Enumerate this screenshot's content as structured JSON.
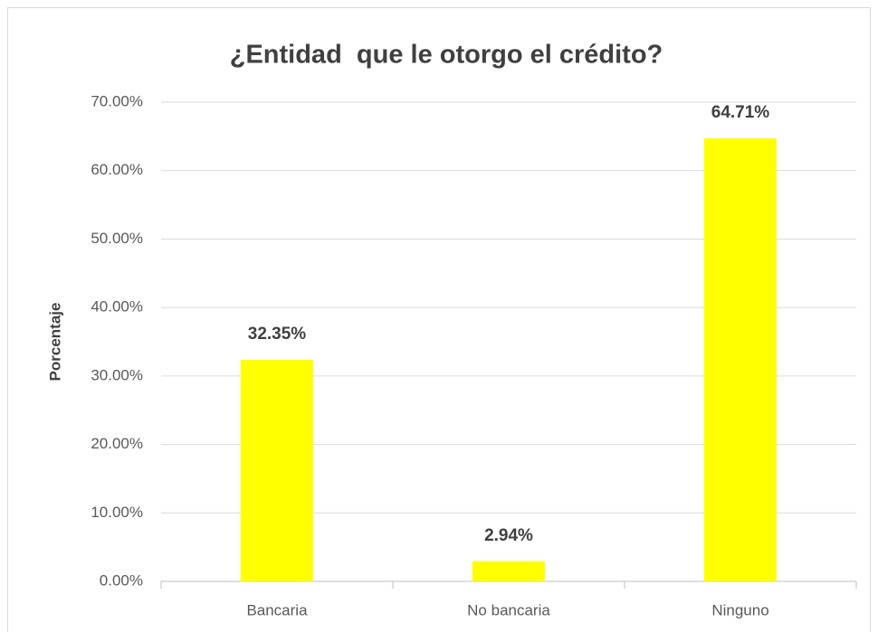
{
  "chart_data": {
    "type": "bar",
    "title": "¿Entidad  que le otorgo el crédito?",
    "y_label": "Porcentaje",
    "categories": [
      "Bancaria",
      "No bancaria",
      "Ninguno"
    ],
    "values": [
      32.35,
      2.94,
      64.71
    ],
    "value_labels": [
      "32.35%",
      "2.94%",
      "64.71%"
    ],
    "color": "#ffff00",
    "ylim": [
      0,
      70
    ],
    "yticks": [
      {
        "value": 0,
        "label": "0.00%"
      },
      {
        "value": 10,
        "label": "10.00%"
      },
      {
        "value": 20,
        "label": "20.00%"
      },
      {
        "value": 30,
        "label": "30.00%"
      },
      {
        "value": 40,
        "label": "40.00%"
      },
      {
        "value": 50,
        "label": "50.00%"
      },
      {
        "value": 60,
        "label": "60.00%"
      },
      {
        "value": 70,
        "label": "70.00%"
      }
    ],
    "grid": true
  }
}
